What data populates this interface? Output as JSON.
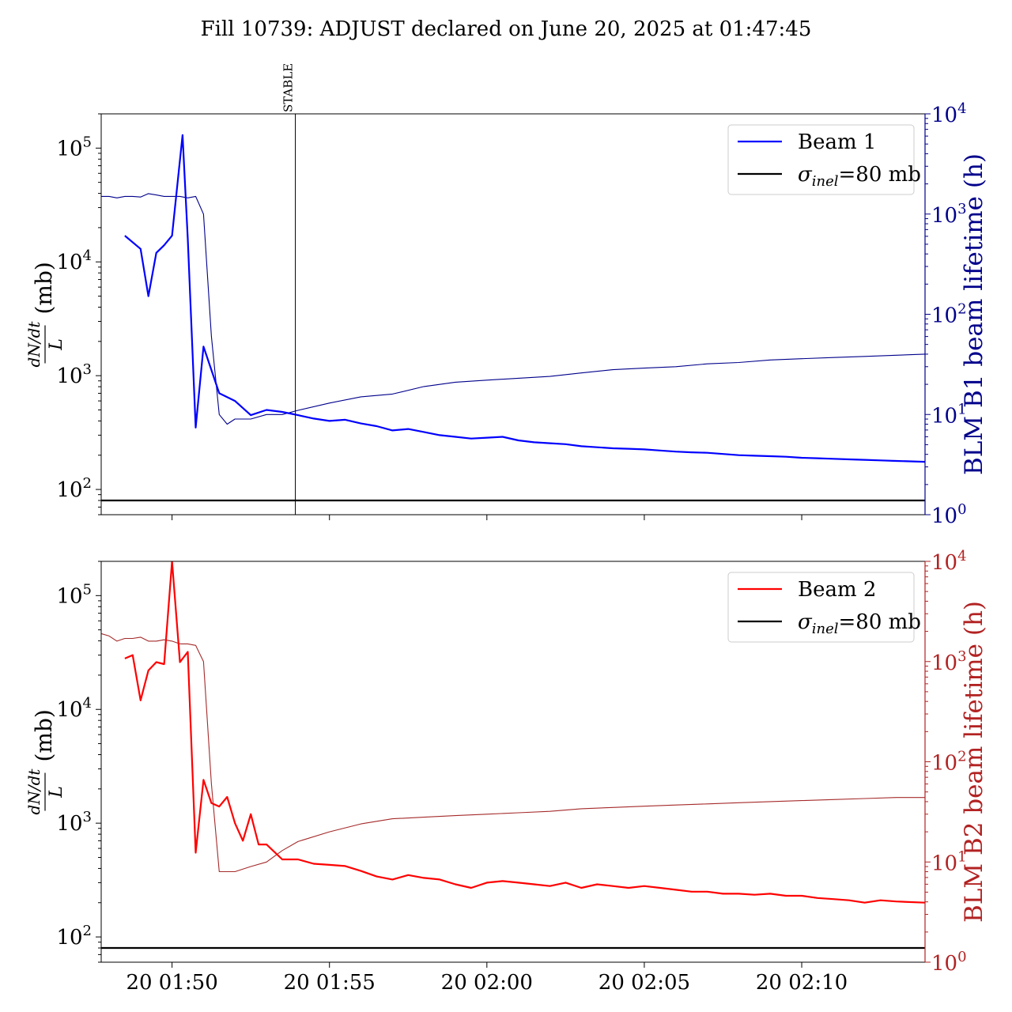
{
  "figure": {
    "title": "Fill 10739: ADJUST declared on June 20, 2025 at 01:47:45"
  },
  "chart_data": [
    {
      "type": "line",
      "panel": "top",
      "ylabel_left": "dN/dt / L (mb)",
      "ylabel_left_num": "dN/dt",
      "ylabel_left_den": "L",
      "ylabel_left_unit": "(mb)",
      "ylabel_right": "BLM B1 beam lifetime (h)",
      "yscale_left": "log",
      "yscale_right": "log",
      "ylim_left": [
        60,
        200000
      ],
      "ylim_right": [
        1,
        10000
      ],
      "xlim": [
        "01:47:45",
        "02:13:55"
      ],
      "left_ticks": [
        "10^2",
        "10^3",
        "10^4",
        "10^5"
      ],
      "right_ticks": [
        "10^0",
        "10^1",
        "10^2",
        "10^3",
        "10^4"
      ],
      "x_ticks": [
        "20 01:50",
        "20 01:55",
        "20 02:00",
        "20 02:05",
        "20 02:10"
      ],
      "show_xtick_labels": false,
      "right_axis_color": "#00008b",
      "annotation": {
        "label": "STABLE",
        "x": "01:53:55"
      },
      "legend_position": "upper right",
      "legend": [
        {
          "label": "Beam 1",
          "color": "#0000ff"
        },
        {
          "label": "σ_inel=80 mb",
          "color": "#000000"
        }
      ],
      "series": [
        {
          "name": "Beam 1",
          "axis": "left",
          "color": "#0000ff",
          "x": [
            "01:48:30",
            "01:49:00",
            "01:49:15",
            "01:49:30",
            "01:49:45",
            "01:50:00",
            "01:50:20",
            "01:50:30",
            "01:50:45",
            "01:51:00",
            "01:51:30",
            "01:52:00",
            "01:52:30",
            "01:53:00",
            "01:53:30",
            "01:54:00",
            "01:54:30",
            "01:55:00",
            "01:55:30",
            "01:56:00",
            "01:56:30",
            "01:57:00",
            "01:57:30",
            "01:58:00",
            "01:58:30",
            "01:59:00",
            "01:59:30",
            "02:00:00",
            "02:00:30",
            "02:01:00",
            "02:01:30",
            "02:02:00",
            "02:02:30",
            "02:03:00",
            "02:03:30",
            "02:04:00",
            "02:04:30",
            "02:05:00",
            "02:05:30",
            "02:06:00",
            "02:06:30",
            "02:07:00",
            "02:07:30",
            "02:08:00",
            "02:08:30",
            "02:09:00",
            "02:09:30",
            "02:10:00",
            "02:10:30",
            "02:11:00",
            "02:11:30",
            "02:12:00",
            "02:12:30",
            "02:13:00",
            "02:13:55"
          ],
          "y": [
            17000,
            13000,
            5000,
            12000,
            14000,
            17000,
            130000,
            16000,
            350,
            1800,
            700,
            600,
            450,
            500,
            480,
            450,
            420,
            400,
            410,
            380,
            360,
            330,
            340,
            320,
            300,
            290,
            280,
            285,
            290,
            270,
            260,
            255,
            250,
            240,
            235,
            230,
            228,
            225,
            220,
            215,
            212,
            210,
            205,
            200,
            198,
            196,
            194,
            190,
            188,
            186,
            184,
            182,
            180,
            178,
            175
          ]
        },
        {
          "name": "BLM B1 beam lifetime",
          "axis": "right",
          "color": "#00008b",
          "x": [
            "01:47:45",
            "01:48:00",
            "01:48:15",
            "01:48:30",
            "01:48:45",
            "01:49:00",
            "01:49:15",
            "01:49:30",
            "01:49:45",
            "01:50:00",
            "01:50:15",
            "01:50:30",
            "01:50:45",
            "01:51:00",
            "01:51:15",
            "01:51:30",
            "01:51:45",
            "01:52:00",
            "01:52:30",
            "01:53:00",
            "01:53:30",
            "01:54:00",
            "01:55:00",
            "01:56:00",
            "01:57:00",
            "01:58:00",
            "01:59:00",
            "02:00:00",
            "02:01:00",
            "02:02:00",
            "02:03:00",
            "02:04:00",
            "02:05:00",
            "02:06:00",
            "02:07:00",
            "02:08:00",
            "02:09:00",
            "02:10:00",
            "02:11:00",
            "02:12:00",
            "02:13:00",
            "02:13:55"
          ],
          "y": [
            1500,
            1500,
            1450,
            1500,
            1500,
            1480,
            1600,
            1550,
            1500,
            1500,
            1500,
            1450,
            1500,
            1000,
            60,
            10,
            8,
            9,
            9,
            10,
            10,
            11,
            13,
            15,
            16,
            19,
            21,
            22,
            23,
            24,
            26,
            28,
            29,
            30,
            32,
            33,
            35,
            36,
            37,
            38,
            39,
            40
          ]
        },
        {
          "name": "σ_inel=80 mb",
          "axis": "left",
          "color": "#000000",
          "x": [
            "01:47:45",
            "02:13:55"
          ],
          "y": [
            80,
            80
          ]
        }
      ]
    },
    {
      "type": "line",
      "panel": "bottom",
      "ylabel_left": "dN/dt / L (mb)",
      "ylabel_left_num": "dN/dt",
      "ylabel_left_den": "L",
      "ylabel_left_unit": "(mb)",
      "ylabel_right": "BLM B2 beam lifetime (h)",
      "yscale_left": "log",
      "yscale_right": "log",
      "ylim_left": [
        60,
        200000
      ],
      "ylim_right": [
        1,
        10000
      ],
      "xlim": [
        "01:47:45",
        "02:13:55"
      ],
      "left_ticks": [
        "10^2",
        "10^3",
        "10^4",
        "10^5"
      ],
      "right_ticks": [
        "10^0",
        "10^1",
        "10^2",
        "10^3",
        "10^4"
      ],
      "x_ticks": [
        "20 01:50",
        "20 01:55",
        "20 02:00",
        "20 02:05",
        "20 02:10"
      ],
      "show_xtick_labels": true,
      "right_axis_color": "#b22222",
      "legend_position": "upper right",
      "legend": [
        {
          "label": "Beam 2",
          "color": "#ff0000"
        },
        {
          "label": "σ_inel=80 mb",
          "color": "#000000"
        }
      ],
      "series": [
        {
          "name": "Beam 2",
          "axis": "left",
          "color": "#ff0000",
          "x": [
            "01:48:30",
            "01:48:45",
            "01:49:00",
            "01:49:15",
            "01:49:30",
            "01:49:45",
            "01:50:00",
            "01:50:15",
            "01:50:30",
            "01:50:45",
            "01:51:00",
            "01:51:15",
            "01:51:30",
            "01:51:45",
            "01:52:00",
            "01:52:15",
            "01:52:30",
            "01:52:45",
            "01:53:00",
            "01:53:30",
            "01:54:00",
            "01:54:30",
            "01:55:00",
            "01:55:30",
            "01:56:00",
            "01:56:30",
            "01:57:00",
            "01:57:30",
            "01:58:00",
            "01:58:30",
            "01:59:00",
            "01:59:30",
            "02:00:00",
            "02:00:30",
            "02:01:00",
            "02:01:30",
            "02:02:00",
            "02:02:30",
            "02:03:00",
            "02:03:30",
            "02:04:00",
            "02:04:30",
            "02:05:00",
            "02:05:30",
            "02:06:00",
            "02:06:30",
            "02:07:00",
            "02:07:30",
            "02:08:00",
            "02:08:30",
            "02:09:00",
            "02:09:30",
            "02:10:00",
            "02:10:30",
            "02:11:00",
            "02:11:30",
            "02:12:00",
            "02:12:30",
            "02:13:00",
            "02:13:55"
          ],
          "y": [
            28000,
            30000,
            12000,
            22000,
            26000,
            25000,
            200000,
            26000,
            32000,
            550,
            2400,
            1500,
            1400,
            1700,
            1000,
            700,
            1200,
            650,
            650,
            480,
            480,
            440,
            430,
            420,
            380,
            340,
            320,
            350,
            330,
            320,
            290,
            270,
            300,
            310,
            300,
            290,
            280,
            300,
            270,
            290,
            280,
            270,
            280,
            270,
            260,
            250,
            250,
            240,
            240,
            235,
            240,
            230,
            230,
            220,
            215,
            210,
            200,
            210,
            205,
            200
          ]
        },
        {
          "name": "BLM B2 beam lifetime",
          "axis": "right",
          "color": "#a52a2a",
          "x": [
            "01:47:45",
            "01:48:00",
            "01:48:15",
            "01:48:30",
            "01:48:45",
            "01:49:00",
            "01:49:15",
            "01:49:30",
            "01:49:45",
            "01:50:00",
            "01:50:15",
            "01:50:30",
            "01:50:45",
            "01:51:00",
            "01:51:15",
            "01:51:30",
            "01:51:45",
            "01:52:00",
            "01:52:30",
            "01:53:00",
            "01:53:30",
            "01:54:00",
            "01:55:00",
            "01:56:00",
            "01:57:00",
            "01:58:00",
            "01:59:00",
            "02:00:00",
            "02:01:00",
            "02:02:00",
            "02:03:00",
            "02:04:00",
            "02:05:00",
            "02:06:00",
            "02:07:00",
            "02:08:00",
            "02:09:00",
            "02:10:00",
            "02:11:00",
            "02:12:00",
            "02:13:00",
            "02:13:55"
          ],
          "y": [
            1900,
            1800,
            1600,
            1700,
            1700,
            1750,
            1600,
            1600,
            1650,
            1600,
            1500,
            1500,
            1450,
            1000,
            60,
            8,
            8,
            8,
            9,
            10,
            13,
            16,
            20,
            24,
            27,
            28,
            29,
            30,
            31,
            32,
            34,
            35,
            36,
            37,
            38,
            39,
            40,
            41,
            42,
            43,
            44,
            44
          ]
        },
        {
          "name": "σ_inel=80 mb",
          "axis": "left",
          "color": "#000000",
          "x": [
            "01:47:45",
            "02:13:55"
          ],
          "y": [
            80,
            80
          ]
        }
      ]
    }
  ]
}
